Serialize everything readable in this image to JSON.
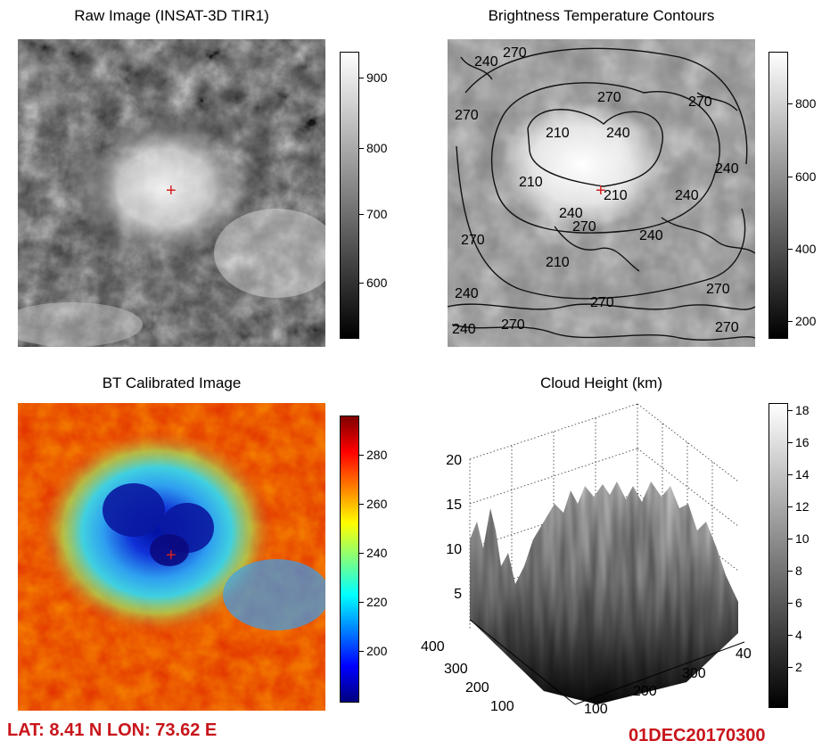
{
  "chart_data": [
    {
      "type": "heatmap",
      "title": "Raw Image (INSAT-3D TIR1)",
      "colormap": "grayscale",
      "colorbar_ticks": [
        "900",
        "800",
        "700",
        "600"
      ],
      "colorbar_range": [
        530,
        940
      ],
      "marker": "+"
    },
    {
      "type": "heatmap",
      "title": "Brightness Temperature Contours",
      "colormap": "grayscale",
      "contour_levels": [
        "210",
        "240",
        "270"
      ],
      "contour_labels": [
        "240",
        "270",
        "270",
        "270",
        "210",
        "240",
        "270",
        "210",
        "210",
        "240",
        "240",
        "270",
        "240",
        "270",
        "240",
        "210",
        "270",
        "240",
        "270",
        "270",
        "240",
        "270"
      ],
      "colorbar_ticks": [
        "800",
        "600",
        "400",
        "200"
      ],
      "colorbar_range": [
        150,
        920
      ],
      "marker": "+"
    },
    {
      "type": "heatmap",
      "title": "BT Calibrated Image",
      "colormap": "jet",
      "colorbar_ticks": [
        "280",
        "260",
        "240",
        "220",
        "200"
      ],
      "colorbar_range": [
        182,
        298
      ],
      "marker": "+"
    },
    {
      "type": "area",
      "title": "Cloud Height (km)",
      "z_ticks": [
        "20",
        "15",
        "10",
        "5"
      ],
      "y_ticks": [
        "400",
        "300",
        "200",
        "100"
      ],
      "x_ticks": [
        "100",
        "200",
        "300",
        "40"
      ],
      "colormap": "grayscale",
      "colorbar_ticks": [
        "18",
        "16",
        "14",
        "12",
        "10",
        "8",
        "6",
        "4",
        "2"
      ],
      "colorbar_range": [
        0,
        19
      ],
      "grid": true
    }
  ],
  "footer": {
    "latlon": "LAT: 8.41 N  LON: 73.62 E",
    "datetime": "01DEC20170300"
  }
}
